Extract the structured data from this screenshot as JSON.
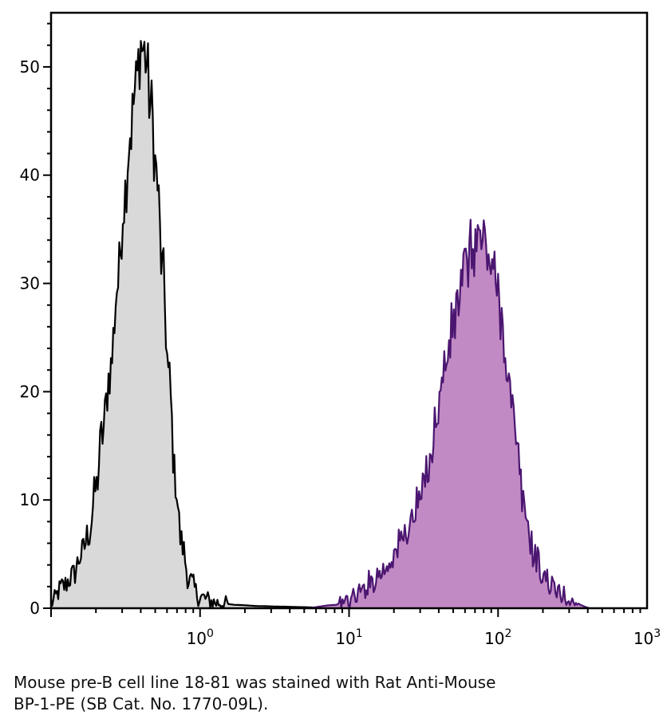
{
  "chart_data": {
    "type": "area",
    "title": "",
    "xlabel": "",
    "ylabel": "",
    "x_scale": "log",
    "xlim": [
      0.1,
      1000
    ],
    "ylim": [
      0,
      55
    ],
    "grid": false,
    "x_tick_labels": [
      {
        "value": 1,
        "base": "10",
        "exp": "0"
      },
      {
        "value": 10,
        "base": "10",
        "exp": "1"
      },
      {
        "value": 100,
        "base": "10",
        "exp": "2"
      },
      {
        "value": 1000,
        "base": "10",
        "exp": "3"
      }
    ],
    "y_ticks": [
      0,
      10,
      20,
      30,
      40,
      50
    ],
    "series": [
      {
        "fill": "#d9d9d9",
        "stroke": "#000000",
        "x": [
          0.1,
          0.12,
          0.14,
          0.16,
          0.18,
          0.2,
          0.22,
          0.25,
          0.28,
          0.31,
          0.34,
          0.37,
          0.4,
          0.43,
          0.47,
          0.51,
          0.56,
          0.62,
          0.68,
          0.75,
          0.85,
          1.0,
          1.3,
          1.8,
          2.5,
          3.5,
          5.0,
          7.0
        ],
        "values": [
          0.5,
          2,
          3,
          5,
          7,
          11,
          16,
          22,
          30,
          38,
          44,
          48,
          52,
          51,
          46,
          40,
          31,
          21,
          12,
          6,
          2.5,
          1,
          0.5,
          0.3,
          0.2,
          0.15,
          0.1,
          0
        ]
      },
      {
        "fill": "#c28ac4",
        "stroke": "#4b1670",
        "x": [
          5,
          8,
          10,
          12,
          14,
          17,
          20,
          23,
          26,
          30,
          35,
          40,
          45,
          50,
          55,
          60,
          66,
          72,
          78,
          85,
          92,
          100,
          110,
          120,
          135,
          150,
          175,
          200,
          250,
          320,
          420
        ],
        "values": [
          0,
          0.3,
          0.8,
          1.5,
          2.5,
          3.5,
          5,
          6.5,
          8,
          10,
          14,
          19,
          23,
          26,
          29,
          31,
          33,
          34,
          34,
          33,
          31,
          29,
          25,
          20,
          14,
          9,
          5,
          3,
          1.5,
          0.5,
          0
        ]
      }
    ]
  },
  "caption": {
    "line1": "Mouse pre-B cell line 18-81 was stained with Rat Anti-Mouse",
    "line2": "BP-1-PE (SB Cat. No. 1770-09L)."
  }
}
